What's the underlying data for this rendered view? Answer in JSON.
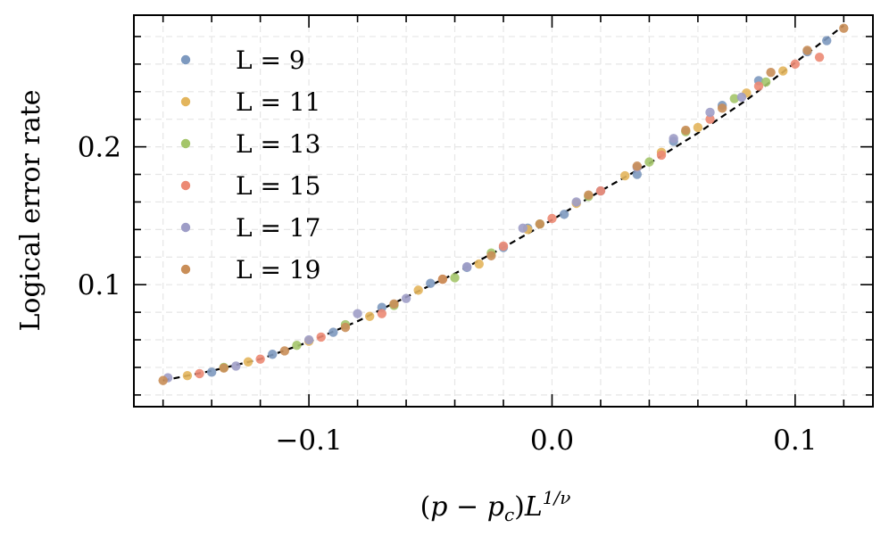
{
  "chart_data": {
    "type": "scatter",
    "title": "",
    "xlabel": "(p − p_c)L^{1/ν}",
    "xlabel_parts": {
      "pre": "(",
      "p1": "p",
      "minus": " − ",
      "p2": "p",
      "sub": "c",
      "close": ")",
      "L": "L",
      "sup": "1/ν"
    },
    "ylabel": "Logical error rate",
    "xlim": [
      -0.172,
      0.132
    ],
    "ylim": [
      0.0115,
      0.2955
    ],
    "xticks": [
      -0.1,
      0.0,
      0.1
    ],
    "xtick_labels": [
      "−0.1",
      "0.0",
      "0.1"
    ],
    "xminor_step": 0.02,
    "yticks": [
      0.1,
      0.2
    ],
    "ytick_labels": [
      "0.1",
      "0.2"
    ],
    "yminor_step": 0.02,
    "grid": true,
    "legend_position": "top-left",
    "fit_line": {
      "style": "dashed",
      "color": "#000000",
      "x": [
        -0.16,
        -0.14,
        -0.12,
        -0.1,
        -0.08,
        -0.06,
        -0.04,
        -0.02,
        0.0,
        0.02,
        0.04,
        0.06,
        0.08,
        0.1,
        0.12
      ],
      "y": [
        0.0305,
        0.0375,
        0.046,
        0.0585,
        0.0735,
        0.091,
        0.108,
        0.127,
        0.147,
        0.168,
        0.188,
        0.21,
        0.234,
        0.261,
        0.288
      ]
    },
    "series": [
      {
        "name": "L = 9",
        "color": "#7d99bf",
        "x": [
          -0.14,
          -0.115,
          -0.09,
          -0.07,
          -0.05,
          -0.035,
          -0.02,
          -0.01,
          0.005,
          0.02,
          0.035,
          0.05,
          0.07,
          0.085,
          0.105,
          0.113
        ],
        "y": [
          0.0365,
          0.0495,
          0.0655,
          0.0835,
          0.101,
          0.1125,
          0.127,
          0.141,
          0.151,
          0.168,
          0.18,
          0.204,
          0.23,
          0.248,
          0.269,
          0.277
        ]
      },
      {
        "name": "L = 11",
        "color": "#e3b55c",
        "x": [
          -0.15,
          -0.125,
          -0.1,
          -0.075,
          -0.055,
          -0.03,
          -0.01,
          0.01,
          0.03,
          0.045,
          0.06,
          0.08,
          0.095
        ],
        "y": [
          0.034,
          0.044,
          0.059,
          0.077,
          0.096,
          0.115,
          0.14,
          0.159,
          0.179,
          0.196,
          0.214,
          0.239,
          0.255
        ]
      },
      {
        "name": "L = 13",
        "color": "#a4c56a",
        "x": [
          -0.135,
          -0.105,
          -0.085,
          -0.065,
          -0.04,
          -0.025,
          -0.005,
          0.015,
          0.04,
          0.055,
          0.075,
          0.088
        ],
        "y": [
          0.04,
          0.056,
          0.071,
          0.085,
          0.105,
          0.123,
          0.144,
          0.164,
          0.189,
          0.211,
          0.235,
          0.247
        ]
      },
      {
        "name": "L = 15",
        "color": "#ec8a74",
        "x": [
          -0.145,
          -0.12,
          -0.095,
          -0.07,
          -0.045,
          -0.02,
          0.0,
          0.02,
          0.045,
          0.065,
          0.085,
          0.1,
          0.11
        ],
        "y": [
          0.0355,
          0.046,
          0.062,
          0.079,
          0.104,
          0.128,
          0.148,
          0.168,
          0.194,
          0.22,
          0.244,
          0.26,
          0.265
        ]
      },
      {
        "name": "L = 17",
        "color": "#9e9dc7",
        "x": [
          -0.158,
          -0.13,
          -0.1,
          -0.08,
          -0.06,
          -0.035,
          -0.012,
          0.01,
          0.035,
          0.05,
          0.065,
          0.078
        ],
        "y": [
          0.0325,
          0.041,
          0.06,
          0.079,
          0.09,
          0.113,
          0.141,
          0.16,
          0.185,
          0.206,
          0.225,
          0.236
        ]
      },
      {
        "name": "L = 19",
        "color": "#c98e58",
        "x": [
          -0.16,
          -0.135,
          -0.11,
          -0.085,
          -0.065,
          -0.045,
          -0.025,
          -0.005,
          0.015,
          0.035,
          0.055,
          0.07,
          0.09,
          0.105,
          0.12
        ],
        "y": [
          0.0305,
          0.0395,
          0.052,
          0.069,
          0.086,
          0.104,
          0.121,
          0.144,
          0.165,
          0.186,
          0.212,
          0.228,
          0.254,
          0.27,
          0.286
        ]
      }
    ]
  }
}
